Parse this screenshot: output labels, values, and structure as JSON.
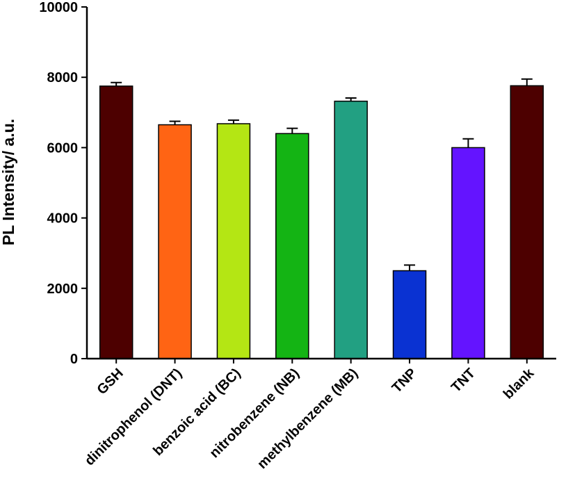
{
  "chart_data": {
    "type": "bar",
    "title": "",
    "xlabel": "",
    "ylabel": "PL Intensity/ a.u.",
    "ylim": [
      0,
      10000
    ],
    "yticks": [
      "0",
      "2000",
      "4000",
      "6000",
      "8000",
      "10000"
    ],
    "grid": false,
    "categories": [
      "GSH",
      "dinitrophenol (DNT)",
      "benzoic acid (BC)",
      "nitrobenzene (NB)",
      "methylbenzene (MB)",
      "TNP",
      "TNT",
      "blank"
    ],
    "values": [
      7750,
      6650,
      6680,
      6400,
      7320,
      2500,
      6000,
      7760
    ],
    "errors": [
      100,
      100,
      100,
      150,
      90,
      160,
      250,
      190
    ],
    "colors": [
      "#4d0000",
      "#ff6414",
      "#b4e614",
      "#14b414",
      "#22a082",
      "#0a32d2",
      "#6414ff",
      "#4d0000"
    ]
  }
}
